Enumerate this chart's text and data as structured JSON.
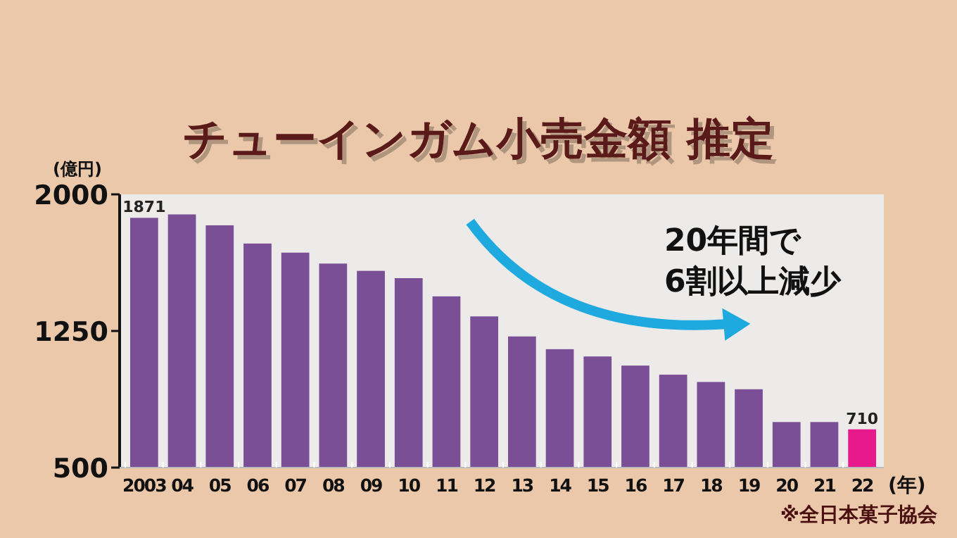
{
  "chart_data": {
    "type": "bar",
    "title": "チューインガム小売金額 推定",
    "ylabel": "(億円)",
    "xlabel": "(年)",
    "categories": [
      "2003",
      "04",
      "05",
      "06",
      "07",
      "08",
      "09",
      "10",
      "11",
      "12",
      "13",
      "14",
      "15",
      "16",
      "17",
      "18",
      "19",
      "20",
      "21",
      "22"
    ],
    "values": [
      1871,
      1890,
      1830,
      1730,
      1680,
      1620,
      1580,
      1540,
      1440,
      1330,
      1220,
      1150,
      1110,
      1060,
      1010,
      970,
      930,
      750,
      750,
      710
    ],
    "colors": [
      "#7b4f96",
      "#7b4f96",
      "#7b4f96",
      "#7b4f96",
      "#7b4f96",
      "#7b4f96",
      "#7b4f96",
      "#7b4f96",
      "#7b4f96",
      "#7b4f96",
      "#7b4f96",
      "#7b4f96",
      "#7b4f96",
      "#7b4f96",
      "#7b4f96",
      "#7b4f96",
      "#7b4f96",
      "#7b4f96",
      "#7b4f96",
      "#e8198b"
    ],
    "value_labels": [
      "1871",
      null,
      null,
      null,
      null,
      null,
      null,
      null,
      null,
      null,
      null,
      null,
      null,
      null,
      null,
      null,
      null,
      null,
      null,
      "710"
    ],
    "ylim": [
      500,
      2000
    ],
    "yticks": [
      500,
      1250,
      2000
    ],
    "annotations": [
      "20年間で\n6割以上減少",
      "※全日本菓子協会"
    ]
  }
}
